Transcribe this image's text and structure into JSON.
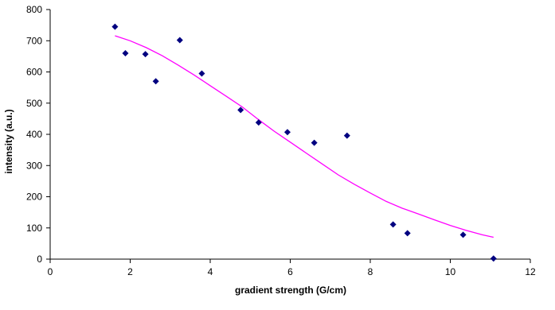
{
  "chart_data": {
    "type": "scatter",
    "title": "",
    "xlabel": "gradient strength (G/cm)",
    "ylabel": "intensity (a.u.)",
    "xlim": [
      0,
      12
    ],
    "ylim": [
      0,
      800
    ],
    "x_ticks": [
      "0",
      "2",
      "4",
      "6",
      "8",
      "10",
      "12"
    ],
    "y_ticks": [
      "0",
      "100",
      "200",
      "300",
      "400",
      "500",
      "600",
      "700",
      "800"
    ],
    "grid": false,
    "legend": "none",
    "series": [
      {
        "marker": "diamond",
        "color": "#000080",
        "points": [
          {
            "x": 1.62,
            "y": 745
          },
          {
            "x": 1.88,
            "y": 660
          },
          {
            "x": 2.38,
            "y": 657
          },
          {
            "x": 2.64,
            "y": 570
          },
          {
            "x": 3.24,
            "y": 702
          },
          {
            "x": 3.79,
            "y": 595
          },
          {
            "x": 4.76,
            "y": 478
          },
          {
            "x": 5.21,
            "y": 438
          },
          {
            "x": 5.93,
            "y": 407
          },
          {
            "x": 6.6,
            "y": 373
          },
          {
            "x": 7.42,
            "y": 396
          },
          {
            "x": 8.57,
            "y": 111
          },
          {
            "x": 8.93,
            "y": 83
          },
          {
            "x": 10.32,
            "y": 78
          },
          {
            "x": 11.08,
            "y": 2
          }
        ]
      },
      {
        "line": true,
        "color": "#ff00ff",
        "points": [
          {
            "x": 1.62,
            "y": 716
          },
          {
            "x": 2.0,
            "y": 700
          },
          {
            "x": 2.4,
            "y": 678
          },
          {
            "x": 2.8,
            "y": 652
          },
          {
            "x": 3.2,
            "y": 622
          },
          {
            "x": 3.6,
            "y": 590
          },
          {
            "x": 4.0,
            "y": 556
          },
          {
            "x": 4.4,
            "y": 522
          },
          {
            "x": 4.8,
            "y": 488
          },
          {
            "x": 5.2,
            "y": 448
          },
          {
            "x": 5.6,
            "y": 410
          },
          {
            "x": 6.0,
            "y": 375
          },
          {
            "x": 6.4,
            "y": 340
          },
          {
            "x": 6.8,
            "y": 305
          },
          {
            "x": 7.2,
            "y": 270
          },
          {
            "x": 7.6,
            "y": 240
          },
          {
            "x": 8.0,
            "y": 212
          },
          {
            "x": 8.4,
            "y": 185
          },
          {
            "x": 8.8,
            "y": 163
          },
          {
            "x": 9.2,
            "y": 145
          },
          {
            "x": 9.6,
            "y": 126
          },
          {
            "x": 10.0,
            "y": 108
          },
          {
            "x": 10.4,
            "y": 92
          },
          {
            "x": 10.8,
            "y": 78
          },
          {
            "x": 11.08,
            "y": 70
          }
        ]
      }
    ]
  }
}
